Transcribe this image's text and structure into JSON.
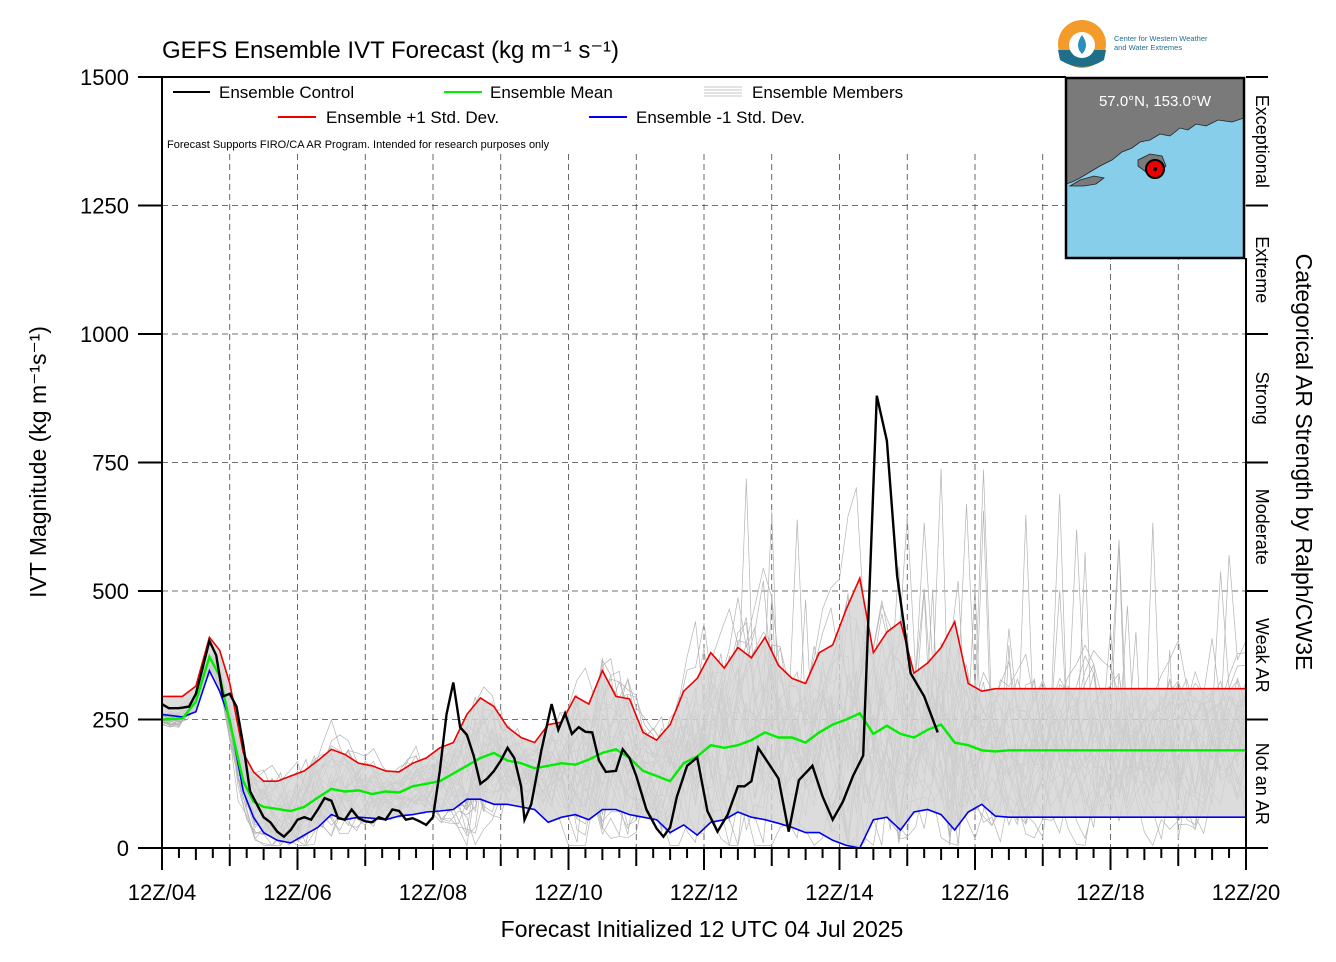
{
  "chart_data": {
    "type": "line",
    "title": "GEFS Ensemble IVT Forecast (kg m⁻¹ s⁻¹)",
    "xlabel": "Forecast Initialized 12 UTC 04 Jul 2025",
    "ylabel": "IVT Magnitude (kg m⁻¹s⁻¹)",
    "right_axis_label": "Categorical AR Strength by Ralph/CW3E",
    "note": "Forecast Supports FIRO/CA AR Program. Intended for research purposes only",
    "ylim": [
      0,
      1500
    ],
    "yticks": [
      0,
      250,
      500,
      750,
      1000,
      1250,
      1500
    ],
    "xlim_days": [
      4.5,
      20.5
    ],
    "xticks": [
      "12Z/04",
      "12Z/06",
      "12Z/08",
      "12Z/10",
      "12Z/12",
      "12Z/14",
      "12Z/16",
      "12Z/18",
      "12Z/20"
    ],
    "grid": true,
    "legend_placement": "top-left",
    "categories": [
      {
        "label": "Not an AR",
        "min": 0,
        "max": 250
      },
      {
        "label": "Weak AR",
        "min": 250,
        "max": 500
      },
      {
        "label": "Moderate",
        "min": 500,
        "max": 750
      },
      {
        "label": "Strong",
        "min": 750,
        "max": 1000
      },
      {
        "label": "Extreme",
        "min": 1000,
        "max": 1250
      },
      {
        "label": "Exceptional",
        "min": 1250,
        "max": 1500
      }
    ],
    "control": {
      "name": "Ensemble Control",
      "color": "#000000",
      "points": [
        [
          4.5,
          280
        ],
        [
          4.6,
          272
        ],
        [
          4.75,
          272
        ],
        [
          4.9,
          275
        ],
        [
          5.0,
          300
        ],
        [
          5.1,
          350
        ],
        [
          5.2,
          403
        ],
        [
          5.3,
          375
        ],
        [
          5.4,
          295
        ],
        [
          5.5,
          300
        ],
        [
          5.6,
          275
        ],
        [
          5.7,
          200
        ],
        [
          5.8,
          110
        ],
        [
          5.9,
          85
        ],
        [
          6.0,
          60
        ],
        [
          6.1,
          50
        ],
        [
          6.2,
          32
        ],
        [
          6.3,
          22
        ],
        [
          6.4,
          35
        ],
        [
          6.5,
          55
        ],
        [
          6.6,
          60
        ],
        [
          6.7,
          55
        ],
        [
          6.8,
          75
        ],
        [
          6.9,
          97
        ],
        [
          7.0,
          92
        ],
        [
          7.1,
          58
        ],
        [
          7.2,
          55
        ],
        [
          7.3,
          75
        ],
        [
          7.4,
          58
        ],
        [
          7.5,
          52
        ],
        [
          7.6,
          50
        ],
        [
          7.7,
          60
        ],
        [
          7.8,
          55
        ],
        [
          7.9,
          75
        ],
        [
          8.0,
          72
        ],
        [
          8.1,
          55
        ],
        [
          8.2,
          58
        ],
        [
          8.3,
          52
        ],
        [
          8.4,
          45
        ],
        [
          8.5,
          60
        ],
        [
          8.6,
          150
        ],
        [
          8.7,
          260
        ],
        [
          8.8,
          322
        ],
        [
          8.9,
          235
        ],
        [
          9.0,
          220
        ],
        [
          9.1,
          180
        ],
        [
          9.2,
          125
        ],
        [
          9.3,
          135
        ],
        [
          9.4,
          150
        ],
        [
          9.5,
          170
        ],
        [
          9.6,
          195
        ],
        [
          9.7,
          175
        ],
        [
          9.8,
          120
        ],
        [
          9.85,
          55
        ],
        [
          9.95,
          85
        ],
        [
          10.1,
          190
        ],
        [
          10.25,
          280
        ],
        [
          10.35,
          230
        ],
        [
          10.45,
          262
        ],
        [
          10.55,
          222
        ],
        [
          10.65,
          235
        ],
        [
          10.75,
          226
        ],
        [
          10.85,
          225
        ],
        [
          10.95,
          170
        ],
        [
          11.05,
          148
        ],
        [
          11.2,
          150
        ],
        [
          11.3,
          192
        ],
        [
          11.4,
          175
        ],
        [
          11.5,
          140
        ],
        [
          11.65,
          75
        ],
        [
          11.8,
          38
        ],
        [
          11.9,
          22
        ],
        [
          12.0,
          40
        ],
        [
          12.1,
          100
        ],
        [
          12.25,
          160
        ],
        [
          12.4,
          176
        ],
        [
          12.55,
          72
        ],
        [
          12.7,
          32
        ],
        [
          12.85,
          65
        ],
        [
          13.0,
          120
        ],
        [
          13.1,
          120
        ],
        [
          13.2,
          130
        ],
        [
          13.3,
          195
        ],
        [
          13.5,
          155
        ],
        [
          13.6,
          135
        ],
        [
          13.75,
          32
        ],
        [
          13.9,
          132
        ],
        [
          14.1,
          160
        ],
        [
          14.25,
          100
        ],
        [
          14.4,
          55
        ],
        [
          14.55,
          90
        ],
        [
          14.7,
          140
        ],
        [
          14.85,
          180
        ],
        [
          15.05,
          880
        ],
        [
          15.2,
          792
        ],
        [
          15.35,
          530
        ],
        [
          15.55,
          340
        ],
        [
          15.75,
          295
        ],
        [
          15.95,
          225
        ]
      ]
    },
    "mean": {
      "name": "Ensemble Mean",
      "color": "#00ee00",
      "points": [
        [
          4.5,
          250
        ],
        [
          4.8,
          252
        ],
        [
          5.0,
          285
        ],
        [
          5.2,
          372
        ],
        [
          5.35,
          335
        ],
        [
          5.5,
          245
        ],
        [
          5.7,
          130
        ],
        [
          5.85,
          90
        ],
        [
          6.0,
          80
        ],
        [
          6.2,
          76
        ],
        [
          6.4,
          72
        ],
        [
          6.6,
          80
        ],
        [
          6.8,
          98
        ],
        [
          7.0,
          115
        ],
        [
          7.2,
          110
        ],
        [
          7.4,
          112
        ],
        [
          7.6,
          105
        ],
        [
          7.8,
          110
        ],
        [
          8.0,
          108
        ],
        [
          8.2,
          120
        ],
        [
          8.4,
          125
        ],
        [
          8.6,
          130
        ],
        [
          8.8,
          145
        ],
        [
          9.0,
          160
        ],
        [
          9.2,
          175
        ],
        [
          9.4,
          185
        ],
        [
          9.6,
          170
        ],
        [
          9.8,
          165
        ],
        [
          10.0,
          155
        ],
        [
          10.2,
          160
        ],
        [
          10.4,
          165
        ],
        [
          10.6,
          162
        ],
        [
          10.8,
          172
        ],
        [
          11.0,
          185
        ],
        [
          11.2,
          192
        ],
        [
          11.4,
          175
        ],
        [
          11.6,
          150
        ],
        [
          11.8,
          140
        ],
        [
          12.0,
          130
        ],
        [
          12.2,
          165
        ],
        [
          12.4,
          178
        ],
        [
          12.6,
          200
        ],
        [
          12.8,
          195
        ],
        [
          13.0,
          200
        ],
        [
          13.2,
          210
        ],
        [
          13.4,
          225
        ],
        [
          13.6,
          215
        ],
        [
          13.8,
          215
        ],
        [
          14.0,
          205
        ],
        [
          14.2,
          225
        ],
        [
          14.4,
          240
        ],
        [
          14.6,
          250
        ],
        [
          14.8,
          262
        ],
        [
          15.0,
          222
        ],
        [
          15.2,
          238
        ],
        [
          15.4,
          222
        ],
        [
          15.6,
          215
        ],
        [
          15.8,
          230
        ],
        [
          16.0,
          240
        ],
        [
          16.2,
          205
        ],
        [
          16.4,
          200
        ],
        [
          16.6,
          190
        ],
        [
          16.8,
          188
        ],
        [
          17.0,
          190
        ],
        [
          20.5,
          190
        ]
      ]
    },
    "plus_sd": {
      "name": "Ensemble +1 Std. Dev.",
      "color": "#ee0000",
      "points": [
        [
          4.5,
          295
        ],
        [
          4.8,
          295
        ],
        [
          5.0,
          315
        ],
        [
          5.2,
          410
        ],
        [
          5.35,
          385
        ],
        [
          5.5,
          320
        ],
        [
          5.7,
          185
        ],
        [
          5.85,
          148
        ],
        [
          6.0,
          130
        ],
        [
          6.2,
          130
        ],
        [
          6.4,
          140
        ],
        [
          6.6,
          150
        ],
        [
          6.8,
          170
        ],
        [
          7.0,
          192
        ],
        [
          7.2,
          182
        ],
        [
          7.4,
          165
        ],
        [
          7.6,
          160
        ],
        [
          7.8,
          150
        ],
        [
          8.0,
          148
        ],
        [
          8.2,
          165
        ],
        [
          8.4,
          175
        ],
        [
          8.6,
          195
        ],
        [
          8.8,
          205
        ],
        [
          9.0,
          260
        ],
        [
          9.2,
          292
        ],
        [
          9.4,
          275
        ],
        [
          9.6,
          235
        ],
        [
          9.8,
          215
        ],
        [
          10.0,
          205
        ],
        [
          10.2,
          240
        ],
        [
          10.4,
          245
        ],
        [
          10.6,
          295
        ],
        [
          10.8,
          280
        ],
        [
          11.0,
          345
        ],
        [
          11.2,
          295
        ],
        [
          11.4,
          290
        ],
        [
          11.6,
          225
        ],
        [
          11.8,
          210
        ],
        [
          12.0,
          240
        ],
        [
          12.2,
          305
        ],
        [
          12.4,
          330
        ],
        [
          12.6,
          380
        ],
        [
          12.8,
          350
        ],
        [
          13.0,
          390
        ],
        [
          13.2,
          370
        ],
        [
          13.4,
          410
        ],
        [
          13.6,
          355
        ],
        [
          13.8,
          330
        ],
        [
          14.0,
          320
        ],
        [
          14.2,
          380
        ],
        [
          14.4,
          395
        ],
        [
          14.6,
          465
        ],
        [
          14.8,
          525
        ],
        [
          15.0,
          380
        ],
        [
          15.2,
          420
        ],
        [
          15.4,
          440
        ],
        [
          15.6,
          340
        ],
        [
          15.8,
          360
        ],
        [
          16.0,
          390
        ],
        [
          16.2,
          440
        ],
        [
          16.4,
          320
        ],
        [
          16.6,
          305
        ],
        [
          16.8,
          310
        ],
        [
          17.0,
          310
        ],
        [
          20.5,
          310
        ]
      ]
    },
    "minus_sd": {
      "name": "Ensemble -1 Std. Dev.",
      "color": "#0000ee",
      "points": [
        [
          4.5,
          260
        ],
        [
          4.8,
          255
        ],
        [
          5.0,
          265
        ],
        [
          5.2,
          345
        ],
        [
          5.35,
          305
        ],
        [
          5.5,
          250
        ],
        [
          5.7,
          110
        ],
        [
          5.85,
          60
        ],
        [
          6.0,
          30
        ],
        [
          6.2,
          15
        ],
        [
          6.4,
          10
        ],
        [
          6.6,
          25
        ],
        [
          6.8,
          40
        ],
        [
          7.0,
          65
        ],
        [
          7.2,
          55
        ],
        [
          7.4,
          60
        ],
        [
          7.6,
          58
        ],
        [
          7.8,
          55
        ],
        [
          8.0,
          62
        ],
        [
          8.2,
          65
        ],
        [
          8.4,
          70
        ],
        [
          8.6,
          72
        ],
        [
          8.8,
          75
        ],
        [
          9.0,
          95
        ],
        [
          9.2,
          95
        ],
        [
          9.4,
          85
        ],
        [
          9.6,
          85
        ],
        [
          9.8,
          80
        ],
        [
          10.0,
          75
        ],
        [
          10.2,
          50
        ],
        [
          10.4,
          60
        ],
        [
          10.6,
          65
        ],
        [
          10.8,
          55
        ],
        [
          11.0,
          75
        ],
        [
          11.2,
          75
        ],
        [
          11.4,
          65
        ],
        [
          11.6,
          60
        ],
        [
          11.8,
          55
        ],
        [
          12.0,
          30
        ],
        [
          12.2,
          45
        ],
        [
          12.4,
          25
        ],
        [
          12.6,
          50
        ],
        [
          12.8,
          55
        ],
        [
          13.0,
          70
        ],
        [
          13.2,
          60
        ],
        [
          13.4,
          55
        ],
        [
          13.6,
          48
        ],
        [
          13.8,
          40
        ],
        [
          14.0,
          30
        ],
        [
          14.2,
          30
        ],
        [
          14.4,
          15
        ],
        [
          14.6,
          5
        ],
        [
          14.8,
          0
        ],
        [
          15.0,
          55
        ],
        [
          15.2,
          60
        ],
        [
          15.4,
          35
        ],
        [
          15.6,
          70
        ],
        [
          15.8,
          75
        ],
        [
          16.0,
          65
        ],
        [
          16.2,
          35
        ],
        [
          16.4,
          70
        ],
        [
          16.6,
          85
        ],
        [
          16.8,
          62
        ],
        [
          17.0,
          60
        ],
        [
          20.5,
          60
        ]
      ]
    },
    "members_note": "Ensemble Members"
  },
  "legend": [
    {
      "label": "Ensemble Control",
      "color": "#000000"
    },
    {
      "label": "Ensemble Mean",
      "color": "#00ee00"
    },
    {
      "label": "Ensemble Members",
      "color": "#b4b4b4"
    },
    {
      "label": "Ensemble +1 Std. Dev.",
      "color": "#ee0000"
    },
    {
      "label": "Ensemble -1 Std. Dev.",
      "color": "#0000ee"
    }
  ],
  "inset": {
    "location": "57.0°N, 153.0°W",
    "land_color": "#7a7a7a",
    "water_color": "#87ceeb"
  },
  "logo": {
    "text_line1": "Center for Western Weather",
    "text_line2": "and Water Extremes"
  }
}
